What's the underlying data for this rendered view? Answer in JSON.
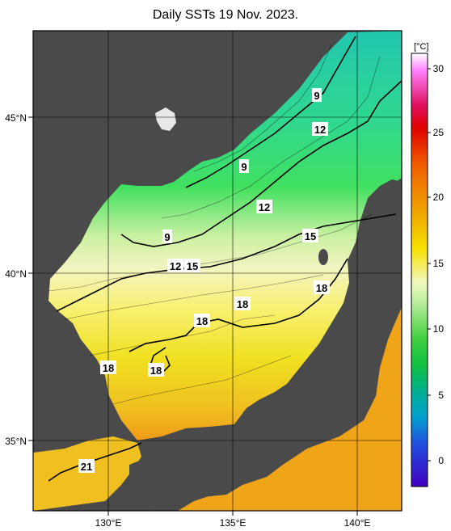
{
  "title": "Daily SSTs 19 Nov. 2023.",
  "colorbar": {
    "unit": "[°C]",
    "ticks": [
      "30",
      "25",
      "20",
      "15",
      "10",
      "5",
      "0"
    ]
  },
  "axes": {
    "lon_labels": [
      "130°E",
      "135°E",
      "140°E"
    ],
    "lat_labels": [
      "45°N",
      "40°N",
      "35°N"
    ]
  },
  "contour_labels": [
    {
      "text": "9"
    },
    {
      "text": "12"
    },
    {
      "text": "9"
    },
    {
      "text": "12"
    },
    {
      "text": "9"
    },
    {
      "text": "15"
    },
    {
      "text": "12"
    },
    {
      "text": "15"
    },
    {
      "text": "18"
    },
    {
      "text": "18"
    },
    {
      "text": "18"
    },
    {
      "text": "18"
    },
    {
      "text": "18"
    },
    {
      "text": "21"
    }
  ],
  "colors": {
    "land": "#4a4a4a",
    "frame": "#000000",
    "sea_cold": "#20c8b0",
    "sea_warm": "#f0a020"
  }
}
